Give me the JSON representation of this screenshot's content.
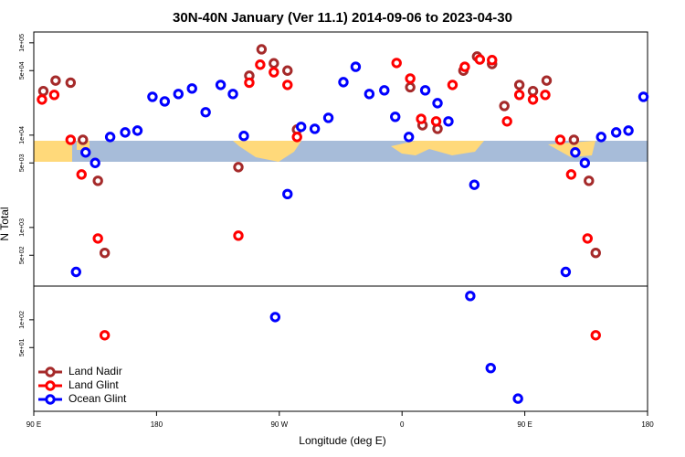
{
  "chart_data": {
    "type": "scatter",
    "title": "30N-40N January (Ver 11.1)   2014-09-06 to 2023-04-30",
    "x_label": "Longitude (deg E)",
    "y_label": "N Total",
    "xlim": [
      90,
      540
    ],
    "xticks": [
      {
        "value": 90,
        "label": "90 E"
      },
      {
        "value": 180,
        "label": "180"
      },
      {
        "value": 270,
        "label": "90 W"
      },
      {
        "value": 360,
        "label": "0"
      },
      {
        "value": 450,
        "label": "90 E"
      },
      {
        "value": 540,
        "label": "180"
      }
    ],
    "ylim": [
      10.2,
      131000
    ],
    "y_scale": "log",
    "yticks": [
      {
        "value": 100000,
        "label": "1e+05"
      },
      {
        "value": 50000,
        "label": "5e+04"
      },
      {
        "value": 10000,
        "label": "1e+04"
      },
      {
        "value": 5000,
        "label": "5e+03"
      },
      {
        "value": 1000,
        "label": "1e+03"
      },
      {
        "value": 500,
        "label": "5e+02"
      },
      {
        "value": 100,
        "label": "1e+02"
      },
      {
        "value": 50,
        "label": "5e+01"
      }
    ],
    "legend": "bottom-left",
    "series": [
      {
        "name": "Land Nadir",
        "color": "#a52a2a",
        "x": [
          97,
          106,
          117,
          126,
          137,
          142,
          240,
          248,
          257,
          266,
          276,
          283,
          366,
          375,
          386,
          405,
          415,
          426,
          435,
          446,
          456,
          466,
          486,
          497,
          502
        ],
        "values": [
          30000,
          39000,
          37000,
          8900,
          3200,
          530,
          4500,
          44000,
          85000,
          60000,
          50000,
          11500,
          33000,
          12800,
          11700,
          50000,
          71000,
          59000,
          20700,
          35000,
          30000,
          39000,
          8900,
          3200,
          530
        ]
      },
      {
        "name": "Land Glint",
        "color": "#ff0000",
        "x": [
          96,
          105,
          117,
          125,
          137,
          142,
          240,
          248,
          256,
          266,
          276,
          283,
          356,
          366,
          374,
          385,
          397,
          406,
          417,
          426,
          437,
          446,
          456,
          465,
          476,
          484,
          496,
          502
        ],
        "values": [
          24300,
          27300,
          8900,
          3750,
          760,
          68,
          815,
          37000,
          58000,
          48000,
          35000,
          9550,
          60500,
          41000,
          15000,
          14100,
          35000,
          55000,
          66000,
          65000,
          14100,
          27300,
          24300,
          27300,
          8900,
          3750,
          760,
          68
        ]
      },
      {
        "name": "Ocean Glint",
        "color": "#0000ff",
        "x": [
          121,
          128,
          135,
          146,
          157,
          166,
          177,
          186,
          196,
          206,
          216,
          227,
          236,
          244,
          267,
          276,
          286,
          296,
          306,
          317,
          326,
          336,
          347,
          355,
          365,
          377,
          386,
          394,
          410,
          413,
          425,
          445,
          480,
          487,
          494,
          506,
          517,
          526,
          537
        ],
        "values": [
          330,
          6500,
          5000,
          9550,
          10700,
          11200,
          26000,
          23200,
          27900,
          32000,
          17700,
          35000,
          27900,
          9800,
          107,
          2300,
          12300,
          11700,
          15400,
          37500,
          55000,
          27900,
          30600,
          15800,
          9550,
          30600,
          22200,
          14100,
          181,
          2900,
          30,
          14,
          330,
          6500,
          5000,
          9550,
          10700,
          11200,
          26000
        ]
      }
    ]
  }
}
